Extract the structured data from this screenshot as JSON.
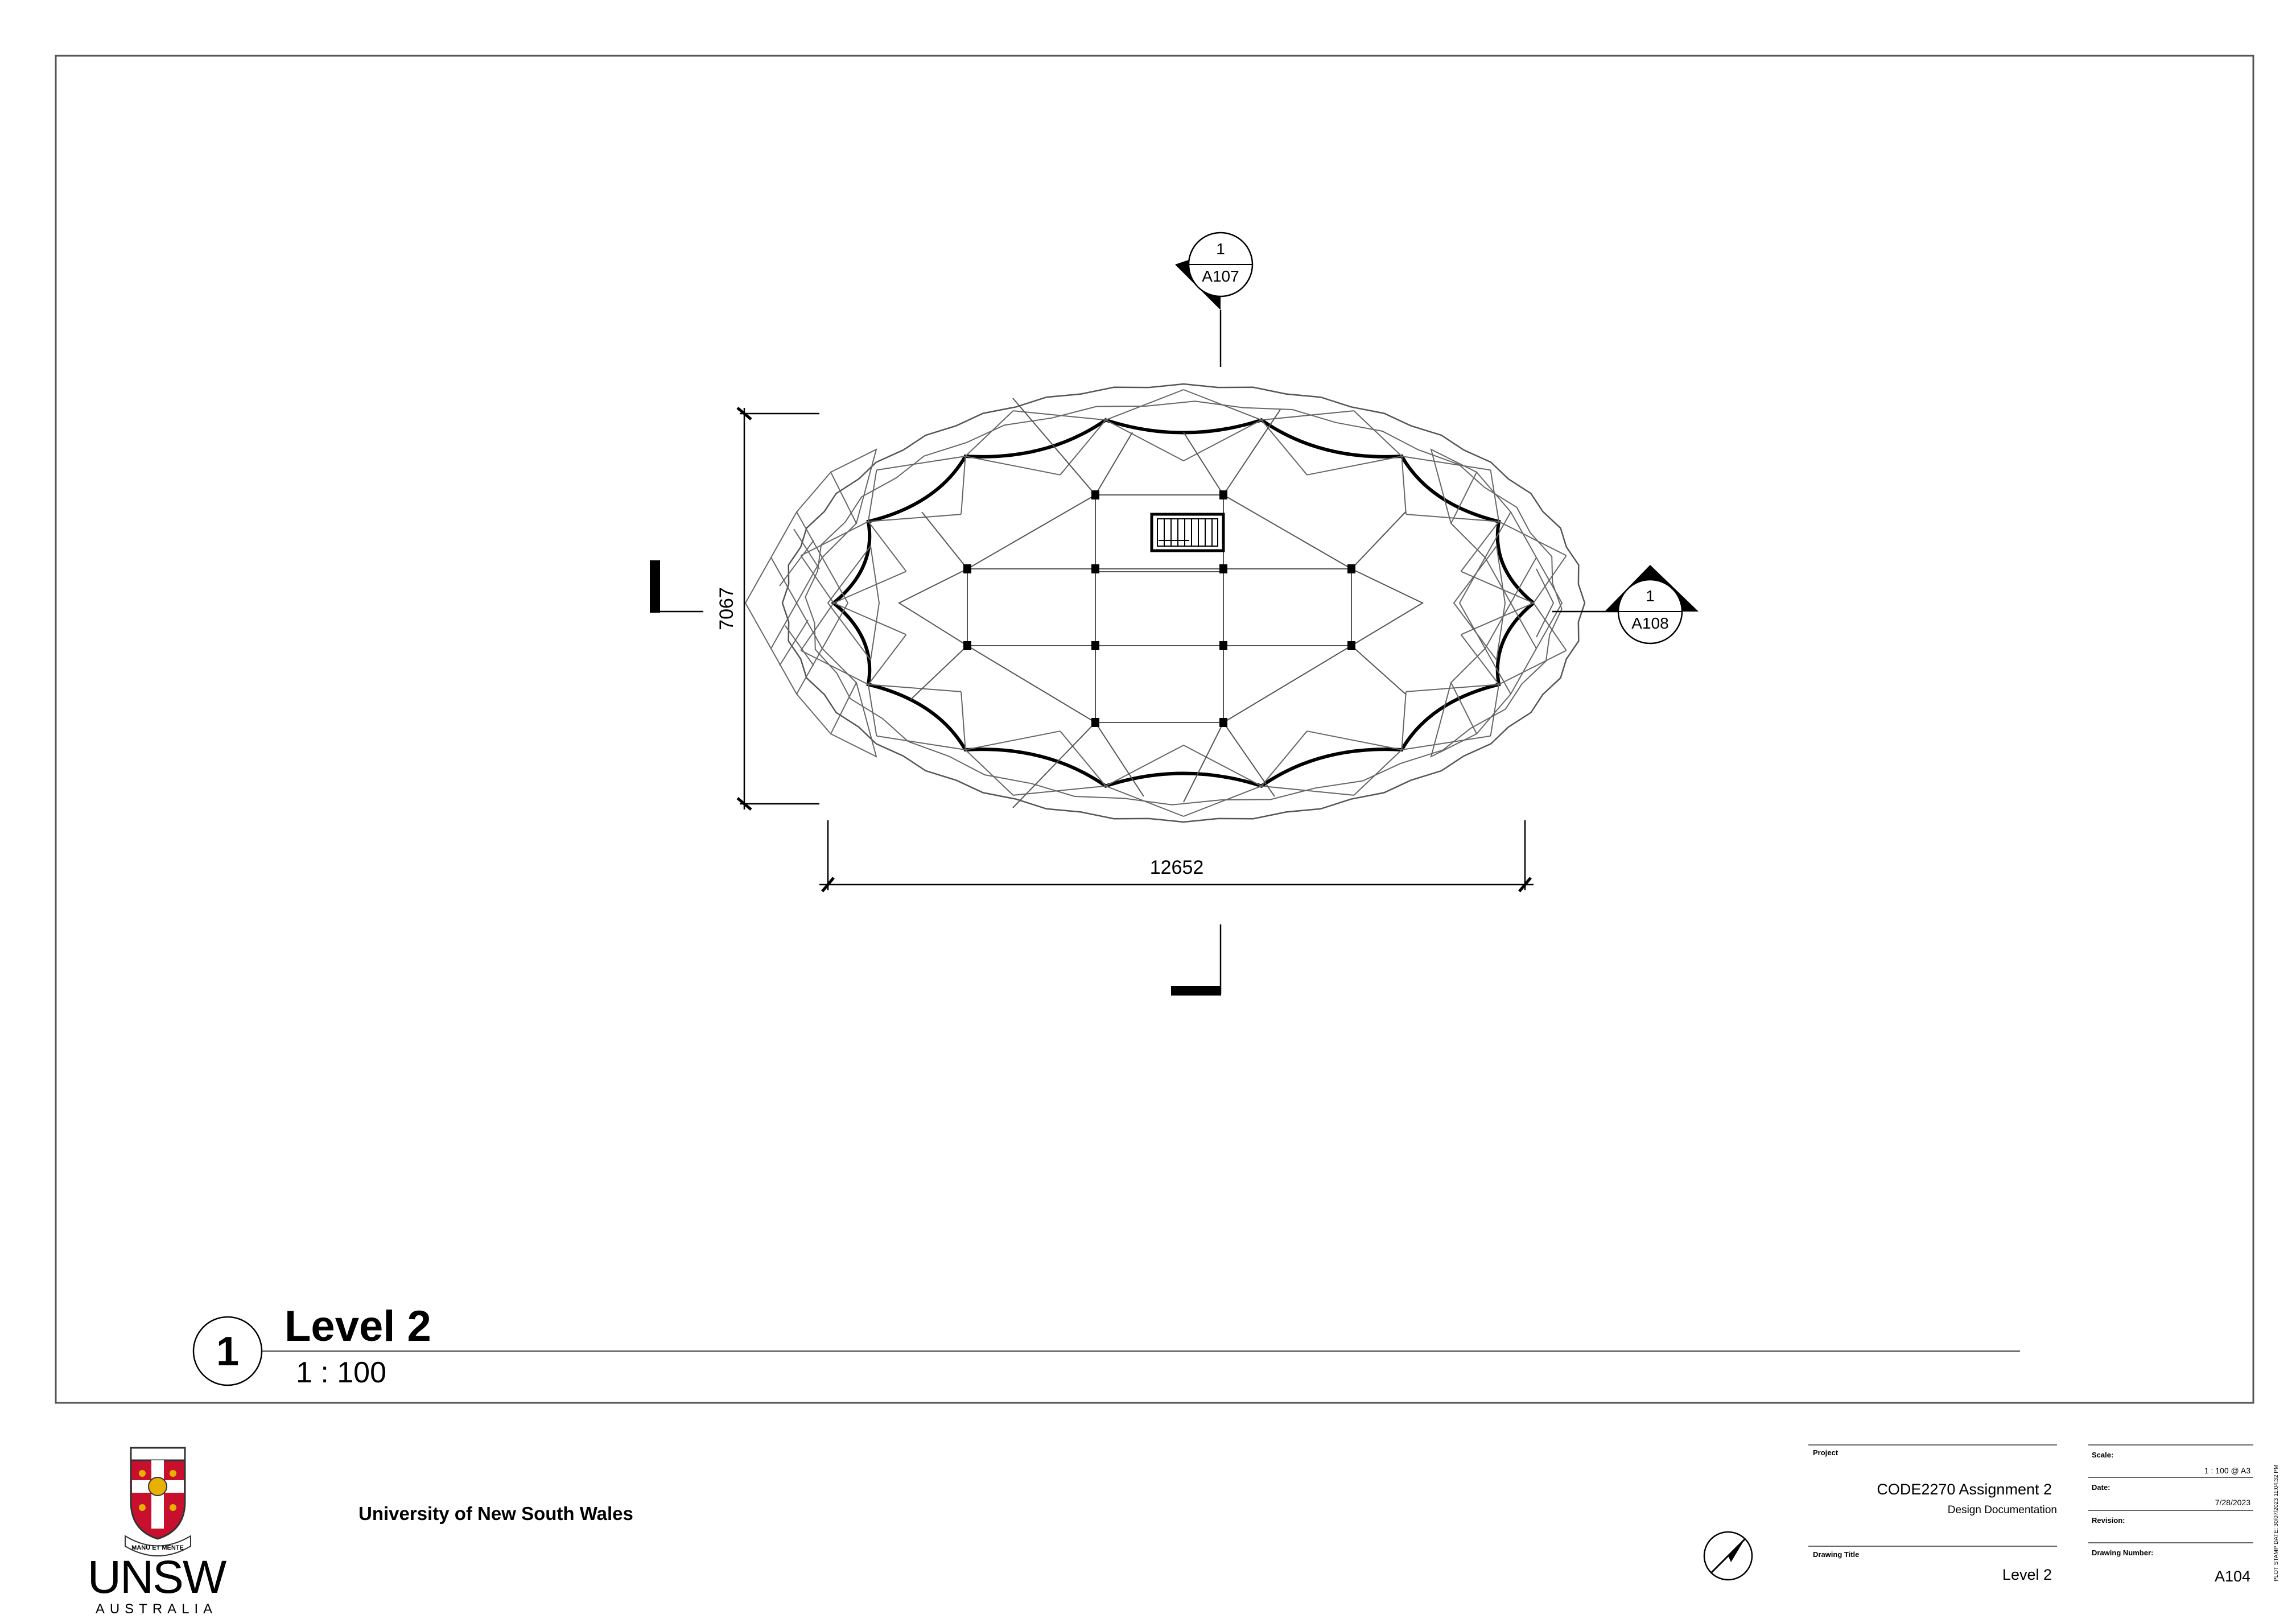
{
  "drawing": {
    "section_top": {
      "number": "1",
      "sheet": "A107"
    },
    "section_right": {
      "number": "1",
      "sheet": "A108"
    },
    "dim_width": "12652",
    "dim_height": "7067"
  },
  "view_title": {
    "number": "1",
    "name": "Level 2",
    "scale": "1 : 100"
  },
  "title_block": {
    "logo_wordmark": "UNSW",
    "logo_country": "AUSTRALIA",
    "logo_motto": "MANU ET MENTE",
    "university": "University of New South Wales",
    "project_label": "Project",
    "project_name": "CODE2270 Assignment 2",
    "project_sub": "Design Documentation",
    "drawing_title_label": "Drawing Title",
    "drawing_title": "Level 2",
    "scale_label": "Scale:",
    "scale_value": "1 : 100 @ A3",
    "date_label": "Date:",
    "date_value": "7/28/2023",
    "revision_label": "Revision:",
    "revision_value": "",
    "drawing_number_label": "Drawing Number:",
    "drawing_number": "A104",
    "plot_stamp": "PLOT STAMP DATE: 30/07/2023 11:04:32 PM"
  },
  "colors": {
    "ink": "#000000",
    "thin_line": "#444444",
    "paper": "#ffffff",
    "logo_red": "#c8102e",
    "logo_gold": "#e8b000"
  }
}
